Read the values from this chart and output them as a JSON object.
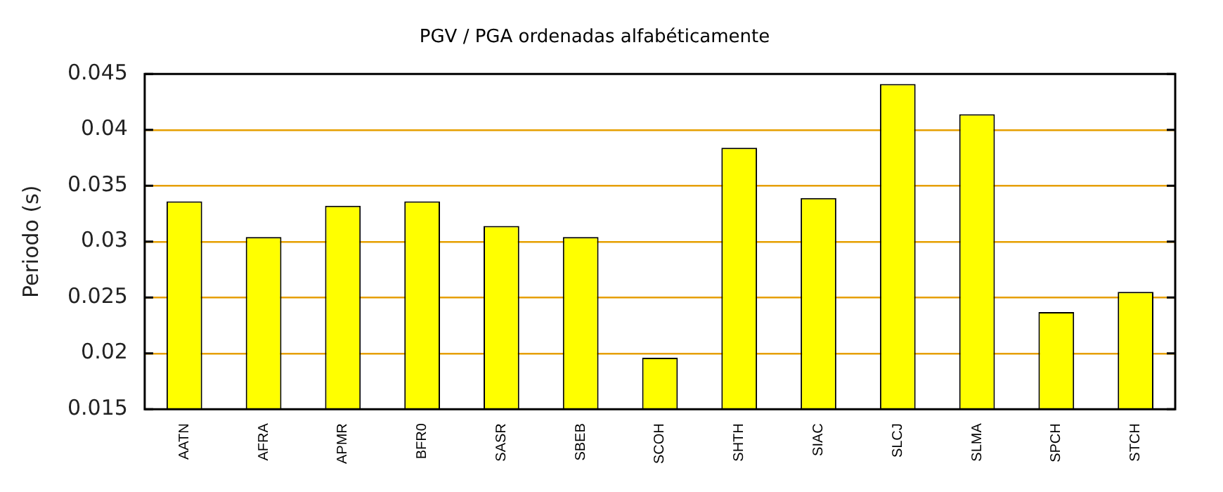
{
  "chart_data": {
    "type": "bar",
    "title": "PGV / PGA ordenadas alfabéticamente",
    "ylabel": "Periodo (s)",
    "categories": [
      "AATN",
      "AFRA",
      "APMR",
      "BFR0",
      "SASR",
      "SBEB",
      "SCOH",
      "SHTH",
      "SIAC",
      "SLCJ",
      "SLMA",
      "SPCH",
      "STCH"
    ],
    "values": [
      0.0336,
      0.0304,
      0.0332,
      0.0336,
      0.0314,
      0.0304,
      0.0196,
      0.0384,
      0.0339,
      0.0441,
      0.0414,
      0.0237,
      0.0255
    ],
    "color": "#ffff00",
    "ylim": [
      0.015,
      0.045
    ],
    "yticks": [
      0.015,
      0.02,
      0.025,
      0.03,
      0.035,
      0.04,
      0.045
    ],
    "grid": "y",
    "legend": false
  }
}
